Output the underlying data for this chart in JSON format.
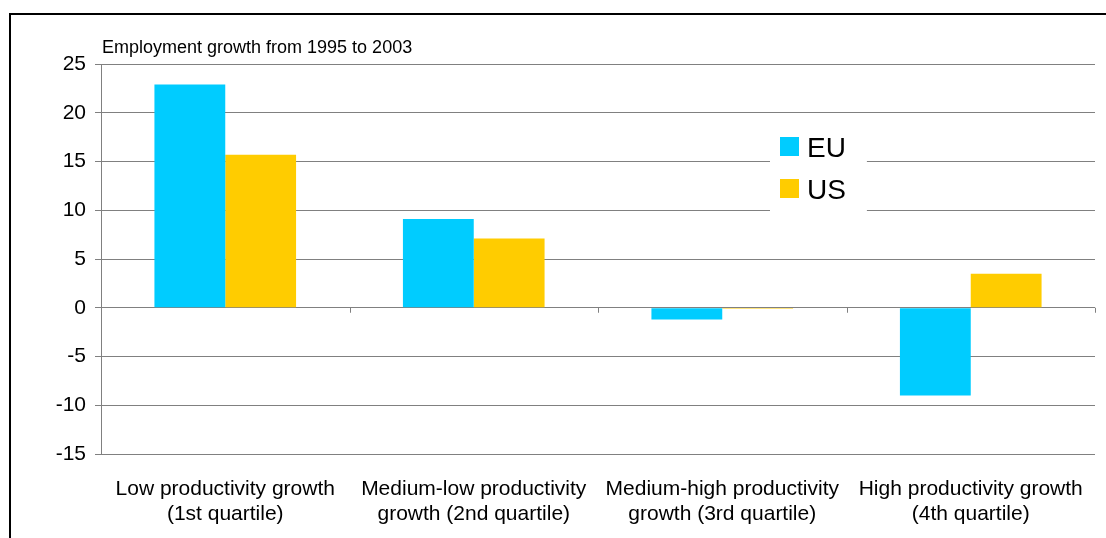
{
  "chart_data": {
    "type": "bar",
    "ylabel": "Employment growth from 1995 to 2003",
    "categories": [
      "Low productivity growth (1st quartile)",
      "Medium-low productivity growth (2nd quartile)",
      "Medium-high productivity growth (3rd quartile)",
      "High productivity growth (4th quartile)"
    ],
    "series": [
      {
        "name": "EU",
        "color": "#00ccff",
        "values": [
          22.9,
          9.1,
          -1.2,
          -9.0
        ]
      },
      {
        "name": "US",
        "color": "#ffcc00",
        "values": [
          15.7,
          7.1,
          -0.1,
          3.5
        ]
      }
    ],
    "ylim": [
      -15,
      25
    ],
    "yticks": [
      -15,
      -10,
      -5,
      0,
      5,
      10,
      15,
      20,
      25
    ],
    "grid": "y",
    "legend": "top right"
  }
}
